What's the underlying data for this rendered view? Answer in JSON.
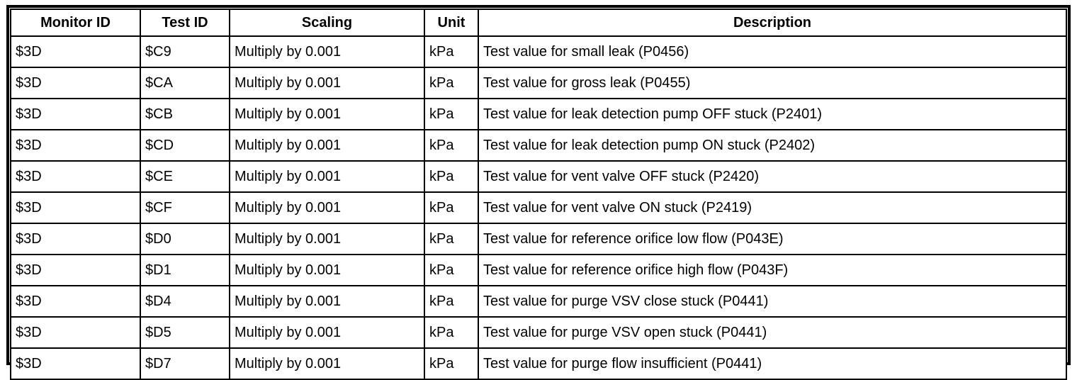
{
  "table": {
    "columns": [
      "Monitor ID",
      "Test ID",
      "Scaling",
      "Unit",
      "Description"
    ],
    "rows": [
      [
        "$3D",
        "$C9",
        "Multiply by 0.001",
        "kPa",
        "Test value for small leak (P0456)"
      ],
      [
        "$3D",
        "$CA",
        "Multiply by 0.001",
        "kPa",
        "Test value for gross leak (P0455)"
      ],
      [
        "$3D",
        "$CB",
        "Multiply by 0.001",
        "kPa",
        "Test value for leak detection pump OFF stuck (P2401)"
      ],
      [
        "$3D",
        "$CD",
        "Multiply by 0.001",
        "kPa",
        "Test value for leak detection pump ON stuck (P2402)"
      ],
      [
        "$3D",
        "$CE",
        "Multiply by 0.001",
        "kPa",
        "Test value for vent valve OFF stuck (P2420)"
      ],
      [
        "$3D",
        "$CF",
        "Multiply by 0.001",
        "kPa",
        "Test value for vent valve ON stuck (P2419)"
      ],
      [
        "$3D",
        "$D0",
        "Multiply by 0.001",
        "kPa",
        "Test value for reference orifice low flow (P043E)"
      ],
      [
        "$3D",
        "$D1",
        "Multiply by 0.001",
        "kPa",
        "Test value for reference orifice high flow (P043F)"
      ],
      [
        "$3D",
        "$D4",
        "Multiply by 0.001",
        "kPa",
        "Test value for purge VSV close stuck (P0441)"
      ],
      [
        "$3D",
        "$D5",
        "Multiply by 0.001",
        "kPa",
        "Test value for purge VSV open stuck (P0441)"
      ],
      [
        "$3D",
        "$D7",
        "Multiply by 0.001",
        "kPa",
        "Test value for purge flow insufficient (P0441)"
      ]
    ],
    "colors": {
      "border": "#000000",
      "text": "#000000",
      "background": "#ffffff"
    }
  }
}
